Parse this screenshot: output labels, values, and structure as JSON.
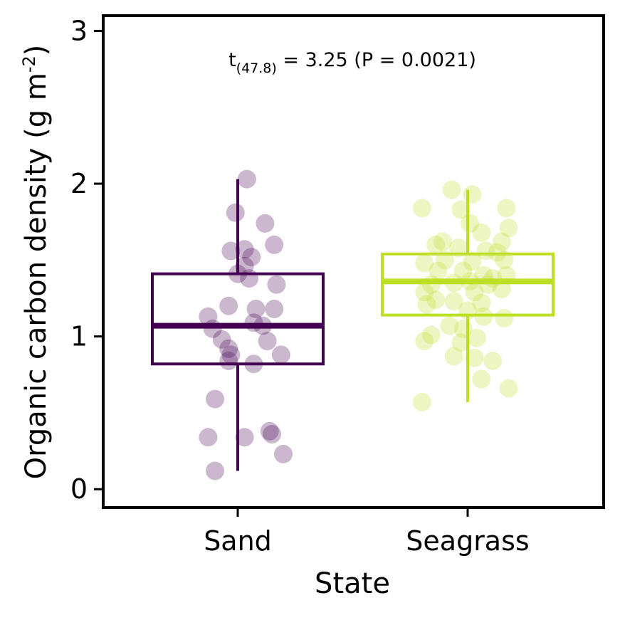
{
  "chart_data": {
    "type": "box",
    "xlabel": "State",
    "ylabel_main": "Organic carbon density (g m",
    "ylabel_sup": "-2",
    "ylabel_end": ")",
    "ylim": [
      -0.12,
      3.1
    ],
    "yticks": [
      0,
      1,
      2,
      3
    ],
    "ytick_labels": [
      "0",
      "1",
      "2",
      "3"
    ],
    "categories": [
      "Sand",
      "Seagrass"
    ],
    "annotation": {
      "t": "t",
      "df": "(47.8)",
      "rest": " = 3.25 (P = 0.0021)"
    },
    "series": [
      {
        "category": "Sand",
        "color": "#440154",
        "box": {
          "q1": 0.82,
          "median": 1.07,
          "q3": 1.41,
          "whisker_low": 0.12,
          "whisker_high": 2.03
        },
        "points": [
          {
            "dx": 0.04,
            "y": 2.03
          },
          {
            "dx": -0.01,
            "y": 1.81
          },
          {
            "dx": 0.12,
            "y": 1.74
          },
          {
            "dx": 0.16,
            "y": 1.6
          },
          {
            "dx": -0.03,
            "y": 1.56
          },
          {
            "dx": 0.03,
            "y": 1.57
          },
          {
            "dx": 0.06,
            "y": 1.52
          },
          {
            "dx": 0.03,
            "y": 1.46
          },
          {
            "dx": 0.0,
            "y": 1.41
          },
          {
            "dx": 0.05,
            "y": 1.38
          },
          {
            "dx": 0.17,
            "y": 1.34
          },
          {
            "dx": -0.13,
            "y": 1.13
          },
          {
            "dx": -0.04,
            "y": 1.2
          },
          {
            "dx": 0.08,
            "y": 1.18
          },
          {
            "dx": 0.16,
            "y": 1.18
          },
          {
            "dx": -0.11,
            "y": 1.05
          },
          {
            "dx": 0.07,
            "y": 1.09
          },
          {
            "dx": 0.11,
            "y": 1.07
          },
          {
            "dx": -0.07,
            "y": 0.98
          },
          {
            "dx": 0.13,
            "y": 0.97
          },
          {
            "dx": -0.04,
            "y": 0.92
          },
          {
            "dx": -0.03,
            "y": 0.88
          },
          {
            "dx": 0.19,
            "y": 0.88
          },
          {
            "dx": -0.04,
            "y": 0.84
          },
          {
            "dx": 0.07,
            "y": 0.82
          },
          {
            "dx": -0.1,
            "y": 0.59
          },
          {
            "dx": 0.14,
            "y": 0.38
          },
          {
            "dx": 0.15,
            "y": 0.36
          },
          {
            "dx": -0.13,
            "y": 0.34
          },
          {
            "dx": 0.03,
            "y": 0.34
          },
          {
            "dx": 0.2,
            "y": 0.23
          },
          {
            "dx": -0.1,
            "y": 0.12
          }
        ]
      },
      {
        "category": "Seagrass",
        "color": "#bddf26",
        "box": {
          "q1": 1.14,
          "median": 1.36,
          "q3": 1.54,
          "whisker_low": 0.57,
          "whisker_high": 1.96
        },
        "points": [
          {
            "dx": -0.07,
            "y": 1.96
          },
          {
            "dx": 0.02,
            "y": 1.93
          },
          {
            "dx": -0.2,
            "y": 1.84
          },
          {
            "dx": -0.03,
            "y": 1.83
          },
          {
            "dx": 0.17,
            "y": 1.84
          },
          {
            "dx": 0.01,
            "y": 1.74
          },
          {
            "dx": 0.18,
            "y": 1.71
          },
          {
            "dx": 0.06,
            "y": 1.68
          },
          {
            "dx": -0.11,
            "y": 1.62
          },
          {
            "dx": -0.14,
            "y": 1.6
          },
          {
            "dx": 0.15,
            "y": 1.62
          },
          {
            "dx": -0.04,
            "y": 1.58
          },
          {
            "dx": 0.08,
            "y": 1.56
          },
          {
            "dx": 0.13,
            "y": 1.55
          },
          {
            "dx": -0.19,
            "y": 1.48
          },
          {
            "dx": -0.1,
            "y": 1.5
          },
          {
            "dx": 0.02,
            "y": 1.49
          },
          {
            "dx": 0.16,
            "y": 1.5
          },
          {
            "dx": -0.13,
            "y": 1.43
          },
          {
            "dx": -0.02,
            "y": 1.43
          },
          {
            "dx": 0.07,
            "y": 1.4
          },
          {
            "dx": 0.11,
            "y": 1.38
          },
          {
            "dx": 0.17,
            "y": 1.4
          },
          {
            "dx": -0.16,
            "y": 1.34
          },
          {
            "dx": -0.06,
            "y": 1.35
          },
          {
            "dx": 0.01,
            "y": 1.36
          },
          {
            "dx": 0.09,
            "y": 1.34
          },
          {
            "dx": -0.19,
            "y": 1.29
          },
          {
            "dx": 0.03,
            "y": 1.29
          },
          {
            "dx": 0.15,
            "y": 1.31
          },
          {
            "dx": -0.14,
            "y": 1.24
          },
          {
            "dx": -0.06,
            "y": 1.23
          },
          {
            "dx": 0.06,
            "y": 1.22
          },
          {
            "dx": -0.18,
            "y": 1.21
          },
          {
            "dx": 0.0,
            "y": 1.17
          },
          {
            "dx": 0.07,
            "y": 1.13
          },
          {
            "dx": 0.16,
            "y": 1.12
          },
          {
            "dx": -0.08,
            "y": 1.07
          },
          {
            "dx": -0.02,
            "y": 1.05
          },
          {
            "dx": -0.16,
            "y": 1.01
          },
          {
            "dx": 0.04,
            "y": 0.99
          },
          {
            "dx": -0.19,
            "y": 0.97
          },
          {
            "dx": -0.03,
            "y": 0.96
          },
          {
            "dx": -0.06,
            "y": 0.87
          },
          {
            "dx": 0.03,
            "y": 0.86
          },
          {
            "dx": 0.11,
            "y": 0.84
          },
          {
            "dx": 0.06,
            "y": 0.72
          },
          {
            "dx": 0.18,
            "y": 0.66
          },
          {
            "dx": -0.2,
            "y": 0.57
          }
        ]
      }
    ]
  }
}
